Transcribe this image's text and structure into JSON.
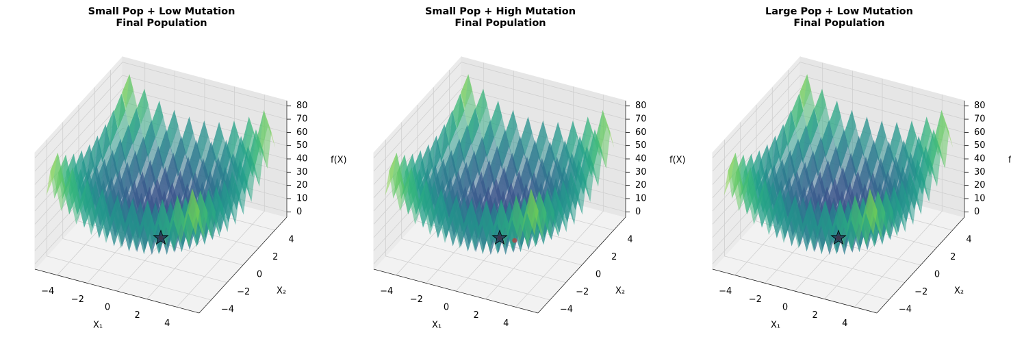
{
  "surface": {
    "x": [
      -5,
      -4.5,
      -4,
      -3.5,
      -3,
      -2.5,
      -2,
      -1.5,
      -1,
      -0.5,
      0,
      0.5,
      1,
      1.5,
      2,
      2.5,
      3,
      3.5,
      4,
      4.5,
      5
    ],
    "y": [
      -5,
      -4.5,
      -4,
      -3.5,
      -3,
      -2.5,
      -2,
      -1.5,
      -1,
      -0.5,
      0,
      0.5,
      1,
      1.5,
      2,
      2.5,
      3,
      3.5,
      4,
      4.5,
      5
    ],
    "z": [
      [
        50,
        65.25,
        41,
        57.25,
        34,
        51.25,
        29,
        47.25,
        26,
        45.25,
        25,
        45.25,
        26,
        47.25,
        29,
        51.25,
        34,
        57.25,
        41,
        65.25,
        50
      ],
      [
        65.25,
        80.5,
        56.25,
        72.5,
        49.25,
        66.5,
        44.25,
        62.5,
        41.25,
        60.5,
        40.25,
        60.5,
        41.25,
        62.5,
        44.25,
        66.5,
        49.25,
        72.5,
        56.25,
        80.5,
        65.25
      ],
      [
        41,
        56.25,
        32,
        48.25,
        25,
        42.25,
        20,
        38.25,
        17,
        36.25,
        16,
        36.25,
        17,
        38.25,
        20,
        42.25,
        25,
        48.25,
        32,
        56.25,
        41
      ],
      [
        57.25,
        72.5,
        48.25,
        64.5,
        41.25,
        58.5,
        36.25,
        54.5,
        33.25,
        52.5,
        32.25,
        52.5,
        33.25,
        54.5,
        36.25,
        58.5,
        41.25,
        64.5,
        48.25,
        72.5,
        57.25
      ],
      [
        34,
        49.25,
        25,
        41.25,
        18,
        35.25,
        13,
        31.25,
        10,
        29.25,
        9,
        29.25,
        10,
        31.25,
        13,
        35.25,
        18,
        41.25,
        25,
        49.25,
        34
      ],
      [
        51.25,
        66.5,
        42.25,
        58.5,
        35.25,
        52.5,
        30.25,
        48.5,
        27.25,
        46.5,
        26.25,
        46.5,
        27.25,
        48.5,
        30.25,
        52.5,
        35.25,
        58.5,
        42.25,
        66.5,
        51.25
      ],
      [
        29,
        44.25,
        20,
        36.25,
        13,
        30.25,
        8,
        26.25,
        5,
        24.25,
        4,
        24.25,
        5,
        26.25,
        8,
        30.25,
        13,
        36.25,
        20,
        44.25,
        29
      ],
      [
        47.25,
        62.5,
        38.25,
        54.5,
        31.25,
        48.5,
        26.25,
        44.5,
        23.25,
        42.5,
        22.25,
        42.5,
        23.25,
        44.5,
        26.25,
        48.5,
        31.25,
        54.5,
        38.25,
        62.5,
        47.25
      ],
      [
        26,
        41.25,
        17,
        33.25,
        10,
        27.25,
        5,
        23.25,
        2,
        21.25,
        1,
        21.25,
        2,
        23.25,
        5,
        27.25,
        10,
        33.25,
        17,
        41.25,
        26
      ],
      [
        45.25,
        60.5,
        36.25,
        52.5,
        29.25,
        46.5,
        24.25,
        42.5,
        21.25,
        40.5,
        20.25,
        40.5,
        21.25,
        42.5,
        24.25,
        46.5,
        29.25,
        52.5,
        36.25,
        60.5,
        45.25
      ],
      [
        25,
        40.25,
        16,
        32.25,
        9,
        26.25,
        4,
        22.25,
        1,
        20.25,
        0,
        20.25,
        1,
        22.25,
        4,
        26.25,
        9,
        32.25,
        16,
        40.25,
        25
      ],
      [
        45.25,
        60.5,
        36.25,
        52.5,
        29.25,
        46.5,
        24.25,
        42.5,
        21.25,
        40.5,
        20.25,
        40.5,
        21.25,
        42.5,
        24.25,
        46.5,
        29.25,
        52.5,
        36.25,
        60.5,
        45.25
      ],
      [
        26,
        41.25,
        17,
        33.25,
        10,
        27.25,
        5,
        23.25,
        2,
        21.25,
        1,
        21.25,
        2,
        23.25,
        5,
        27.25,
        10,
        33.25,
        17,
        41.25,
        26
      ],
      [
        47.25,
        62.5,
        38.25,
        54.5,
        31.25,
        48.5,
        26.25,
        44.5,
        23.25,
        42.5,
        22.25,
        42.5,
        23.25,
        44.5,
        26.25,
        48.5,
        31.25,
        54.5,
        38.25,
        62.5,
        47.25
      ],
      [
        29,
        44.25,
        20,
        36.25,
        13,
        30.25,
        8,
        26.25,
        5,
        24.25,
        4,
        24.25,
        5,
        26.25,
        8,
        30.25,
        13,
        36.25,
        20,
        44.25,
        29
      ],
      [
        51.25,
        66.5,
        42.25,
        58.5,
        35.25,
        52.5,
        30.25,
        48.5,
        27.25,
        46.5,
        26.25,
        46.5,
        27.25,
        48.5,
        30.25,
        52.5,
        35.25,
        58.5,
        42.25,
        66.5,
        51.25
      ],
      [
        34,
        49.25,
        25,
        41.25,
        18,
        35.25,
        13,
        31.25,
        10,
        29.25,
        9,
        29.25,
        10,
        31.25,
        13,
        35.25,
        18,
        41.25,
        25,
        49.25,
        34
      ],
      [
        57.25,
        72.5,
        48.25,
        64.5,
        41.25,
        58.5,
        36.25,
        54.5,
        33.25,
        52.5,
        32.25,
        52.5,
        33.25,
        54.5,
        36.25,
        58.5,
        41.25,
        64.5,
        48.25,
        72.5,
        57.25
      ],
      [
        41,
        56.25,
        32,
        48.25,
        25,
        42.25,
        20,
        38.25,
        17,
        36.25,
        16,
        36.25,
        17,
        38.25,
        20,
        42.25,
        25,
        48.25,
        32,
        56.25,
        41
      ],
      [
        65.25,
        80.5,
        56.25,
        72.5,
        49.25,
        66.5,
        44.25,
        62.5,
        41.25,
        60.5,
        40.25,
        60.5,
        41.25,
        62.5,
        44.25,
        66.5,
        49.25,
        72.5,
        56.25,
        80.5,
        65.25
      ],
      [
        50,
        65.25,
        41,
        57.25,
        34,
        51.25,
        29,
        47.25,
        26,
        45.25,
        25,
        45.25,
        26,
        47.25,
        29,
        51.25,
        34,
        57.25,
        41,
        65.25,
        50
      ]
    ],
    "colormap": "viridis"
  },
  "chart_data": [
    {
      "type": "surface3d",
      "title": [
        "Small Pop + Low Mutation",
        "Final Population"
      ],
      "x_label": "X₁",
      "y_label": "X₂",
      "z_label": "f(X)",
      "xlim": [
        -5.5,
        5.5
      ],
      "ylim": [
        -5.5,
        5.5
      ],
      "zlim": [
        -4,
        84
      ],
      "xticks": [
        {
          "value": -4,
          "label": "−4"
        },
        {
          "value": -2,
          "label": "−2"
        },
        0,
        2,
        4
      ],
      "yticks": [
        {
          "value": -4,
          "label": "−4"
        },
        {
          "value": -2,
          "label": "−2"
        },
        0,
        2,
        4
      ],
      "zticks": [
        0,
        10,
        20,
        30,
        40,
        50,
        60,
        70,
        80
      ],
      "population": {
        "color": "#d62728",
        "x": [
          0
        ],
        "y": [
          0
        ],
        "z": [
          0
        ]
      },
      "best": {
        "color": "#1f2f4f",
        "x": 0,
        "y": 0,
        "z": 0
      }
    },
    {
      "type": "surface3d",
      "title": [
        "Small Pop + High Mutation",
        "Final Population"
      ],
      "x_label": "X₁",
      "y_label": "X₂",
      "z_label": "f(X)",
      "xlim": [
        -5.5,
        5.5
      ],
      "ylim": [
        -5.5,
        5.5
      ],
      "zlim": [
        -4,
        84
      ],
      "xticks": [
        {
          "value": -4,
          "label": "−4"
        },
        {
          "value": -2,
          "label": "−2"
        },
        0,
        2,
        4
      ],
      "yticks": [
        {
          "value": -4,
          "label": "−4"
        },
        {
          "value": -2,
          "label": "−2"
        },
        0,
        2,
        4
      ],
      "zticks": [
        0,
        10,
        20,
        30,
        40,
        50,
        60,
        70,
        80
      ],
      "population": {
        "color": "#d62728",
        "x": [
          0,
          1
        ],
        "y": [
          0,
          0
        ],
        "z": [
          0,
          1
        ]
      },
      "best": {
        "color": "#1f2f4f",
        "x": 0,
        "y": 0,
        "z": 0
      }
    },
    {
      "type": "surface3d",
      "title": [
        "Large Pop + Low Mutation",
        "Final Population"
      ],
      "x_label": "X₁",
      "y_label": "X₂",
      "z_label": "f(X)",
      "xlim": [
        -5.5,
        5.5
      ],
      "ylim": [
        -5.5,
        5.5
      ],
      "zlim": [
        -4,
        84
      ],
      "xticks": [
        {
          "value": -4,
          "label": "−4"
        },
        {
          "value": -2,
          "label": "−2"
        },
        0,
        2,
        4
      ],
      "yticks": [
        {
          "value": -4,
          "label": "−4"
        },
        {
          "value": -2,
          "label": "−2"
        },
        0,
        2,
        4
      ],
      "zticks": [
        0,
        10,
        20,
        30,
        40,
        50,
        60,
        70,
        80
      ],
      "population": {
        "color": "#d62728",
        "x": [
          0
        ],
        "y": [
          0
        ],
        "z": [
          0
        ]
      },
      "best": {
        "color": "#1f2f4f",
        "x": 0,
        "y": 0,
        "z": 0
      }
    }
  ]
}
